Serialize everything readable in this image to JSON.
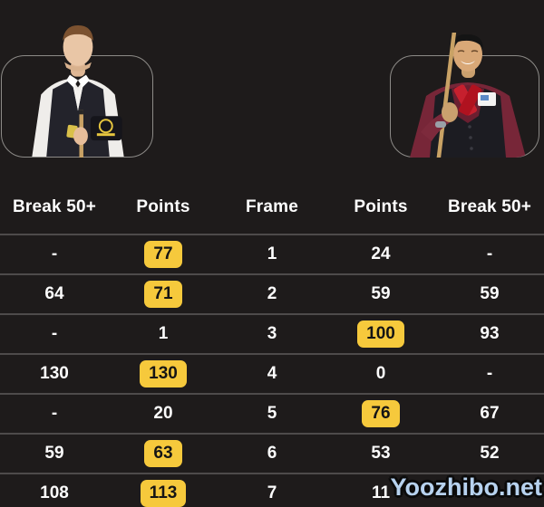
{
  "table": {
    "headers": [
      "Break 50+",
      "Points",
      "Frame",
      "Points",
      "Break 50+"
    ],
    "rows": [
      {
        "left_break": "-",
        "left_points": "77",
        "left_highlight": true,
        "frame": "1",
        "right_points": "24",
        "right_highlight": false,
        "right_break": "-"
      },
      {
        "left_break": "64",
        "left_points": "71",
        "left_highlight": true,
        "frame": "2",
        "right_points": "59",
        "right_highlight": false,
        "right_break": "59"
      },
      {
        "left_break": "-",
        "left_points": "1",
        "left_highlight": false,
        "frame": "3",
        "right_points": "100",
        "right_highlight": true,
        "right_break": "93"
      },
      {
        "left_break": "130",
        "left_points": "130",
        "left_highlight": true,
        "frame": "4",
        "right_points": "0",
        "right_highlight": false,
        "right_break": "-"
      },
      {
        "left_break": "-",
        "left_points": "20",
        "left_highlight": false,
        "frame": "5",
        "right_points": "76",
        "right_highlight": true,
        "right_break": "67"
      },
      {
        "left_break": "59",
        "left_points": "63",
        "left_highlight": true,
        "frame": "6",
        "right_points": "53",
        "right_highlight": false,
        "right_break": "52"
      },
      {
        "left_break": "108",
        "left_points": "113",
        "left_highlight": true,
        "frame": "7",
        "right_points": "11",
        "right_highlight": false,
        "right_break": ""
      }
    ]
  },
  "watermark": {
    "text": "Yoozhibo.net"
  },
  "colors": {
    "background": "#1e1b1b",
    "divider": "#4e4b4b",
    "badge_bg": "#f6c93c",
    "badge_text": "#151515",
    "text": "#fdfdfd",
    "frame_border": "#8d8b88",
    "watermark_text": "#b7d2ef"
  }
}
